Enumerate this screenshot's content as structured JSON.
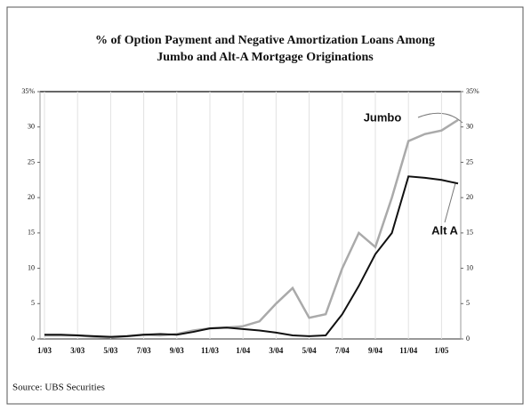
{
  "chart_data": {
    "type": "line",
    "title": "% of Option Payment and Negative Amortization Loans Among",
    "subtitle": "Jumbo and Alt-A Mortgage Originations",
    "source": "Source: UBS Securities",
    "categories": [
      "1/03",
      null,
      "3/03",
      null,
      "5/03",
      null,
      "7/03",
      null,
      "9/03",
      null,
      "11/03",
      null,
      "1/04",
      null,
      "3/04",
      null,
      "5/04",
      null,
      "7/04",
      null,
      "9/04",
      null,
      "11/04",
      null,
      "1/05",
      null
    ],
    "series": [
      {
        "name": "Jumbo",
        "color": "#aaaaaa",
        "values": [
          0.5,
          0.5,
          0.5,
          0.3,
          0.2,
          0.4,
          0.6,
          0.5,
          0.7,
          1.2,
          1.5,
          1.6,
          1.8,
          2.5,
          5,
          7.2,
          3,
          3.5,
          10,
          15,
          13,
          20,
          28,
          29,
          29.5,
          31
        ]
      },
      {
        "name": "Alt A",
        "color": "#111111",
        "values": [
          0.6,
          0.6,
          0.5,
          0.4,
          0.3,
          0.4,
          0.6,
          0.7,
          0.6,
          1.0,
          1.5,
          1.6,
          1.4,
          1.2,
          0.9,
          0.5,
          0.4,
          0.5,
          3.5,
          7.5,
          12,
          15,
          23,
          22.8,
          22.5,
          22
        ]
      }
    ],
    "ylim": [
      0,
      35
    ],
    "yticks": [
      0,
      5,
      10,
      15,
      20,
      25,
      30,
      {
        "value": 35,
        "label": "35%"
      }
    ],
    "y2lim": [
      0,
      35
    ],
    "y2ticks": [
      0,
      5,
      10,
      15,
      20,
      25,
      30,
      {
        "value": 35,
        "label": "35%"
      }
    ],
    "grid": true
  }
}
